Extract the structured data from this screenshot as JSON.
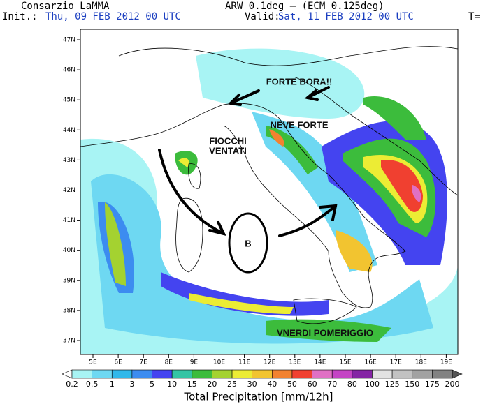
{
  "header": {
    "left": "Consarzio LaMMA",
    "center": "ARW 0.1deg — (ECM 0.125deg)",
    "init_label": "Init.:",
    "init": "Thu, 09 FEB 2012   00 UTC",
    "valid_label": "Valid:",
    "valid": "Sat, 11 FEB 2012   00 UTC",
    "right": "T="
  },
  "map": {
    "lat_labels": [
      "47N",
      "46N",
      "45N",
      "44N",
      "43N",
      "42N",
      "41N",
      "40N",
      "39N",
      "38N",
      "37N"
    ],
    "lon_labels": [
      "5E",
      "6E",
      "7E",
      "8E",
      "9E",
      "10E",
      "11E",
      "12E",
      "13E",
      "14E",
      "15E",
      "16E",
      "17E",
      "18E",
      "19E"
    ]
  },
  "annotations": {
    "bora": "FORTE BORA!!",
    "neve": "NEVE FORTE",
    "fiocchi_1": "FIOCCHI",
    "fiocchi_2": "VENTATI",
    "low": "B",
    "venerdi": "VNERDI POMERIGGIO"
  },
  "legend": {
    "title": "Total Precipitation [mm/12h]",
    "labels": [
      "0.2",
      "0.5",
      "1",
      "3",
      "5",
      "10",
      "15",
      "20",
      "25",
      "30",
      "40",
      "50",
      "60",
      "70",
      "80",
      "100",
      "125",
      "150",
      "175",
      "200"
    ],
    "colors": [
      "#a8f4f4",
      "#6ed8f2",
      "#30b8ea",
      "#3c8cf0",
      "#4444f0",
      "#34c4a4",
      "#3cbc3c",
      "#a4d230",
      "#ecec34",
      "#f2c430",
      "#f28230",
      "#f04030",
      "#e070c4",
      "#c444c4",
      "#8424a4",
      "#e2e2e2",
      "#c2c2c2",
      "#a2a2a2",
      "#828282"
    ],
    "under_color": "#ffffff",
    "over_color": "#555555"
  }
}
